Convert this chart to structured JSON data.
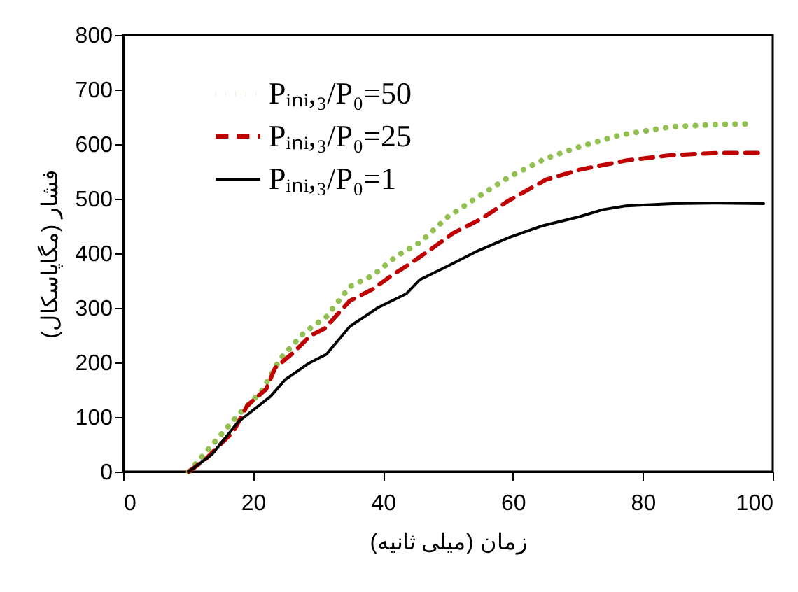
{
  "chart_data": {
    "type": "line",
    "xlabel": "زمان (میلی ثانیه)",
    "ylabel": "فشار (مگاپاسکال)",
    "xlim": [
      0,
      100
    ],
    "xticks": [
      0,
      20,
      40,
      60,
      80,
      100
    ],
    "ylim": [
      0,
      800
    ],
    "yticks": [
      0,
      100,
      200,
      300,
      400,
      500,
      600,
      700,
      800
    ],
    "grid": false,
    "legend": "top left",
    "marker": "none",
    "series": [
      {
        "name": "Pᵢₙᵢ,₃/P₀=50",
        "color": "#92c050",
        "line_style": "dotted",
        "x": [
          10.1,
          13.7,
          17.7,
          21.3,
          24.2,
          27.8,
          31.3,
          34.9,
          38.5,
          42.1,
          45.7,
          50.0,
          54.3,
          59.4,
          65.1,
          70.2,
          76.6,
          84.5,
          91.7,
          96.4
        ],
        "values": [
          0,
          49,
          104,
          147,
          207,
          254,
          284,
          339,
          360,
          395,
          420,
          467,
          501,
          540,
          574,
          595,
          617,
          632,
          636,
          637
        ]
      },
      {
        "name": "Pᵢₙᵢ,₃/P₀=25",
        "color": "#c00000",
        "line_style": "dashed",
        "x": [
          10.1,
          12.7,
          17.0,
          19.1,
          22.0,
          23.4,
          26.3,
          28.8,
          31.0,
          34.9,
          38.5,
          41.4,
          44.3,
          47.9,
          50.8,
          55.1,
          59.4,
          65.1,
          70.2,
          77.4,
          84.5,
          91.7,
          98.6
        ],
        "values": [
          0,
          23,
          74,
          121,
          151,
          190,
          219,
          249,
          262,
          313,
          335,
          360,
          382,
          412,
          437,
          463,
          497,
          535,
          553,
          570,
          580,
          584,
          584
        ]
      },
      {
        "name": "Pᵢₙᵢ,₃/P₀=1",
        "color": "#000000",
        "line_style": "solid",
        "x": [
          10.1,
          13.7,
          17.7,
          22.7,
          24.9,
          28.5,
          31.3,
          34.9,
          39.3,
          43.6,
          45.7,
          50.0,
          54.3,
          59.4,
          64.4,
          70.2,
          73.8,
          77.4,
          84.5,
          91.7,
          98.6
        ],
        "values": [
          0,
          32,
          91,
          138,
          168,
          198,
          215,
          266,
          301,
          326,
          352,
          377,
          403,
          429,
          450,
          467,
          480,
          487,
          491,
          492,
          491
        ]
      }
    ]
  }
}
